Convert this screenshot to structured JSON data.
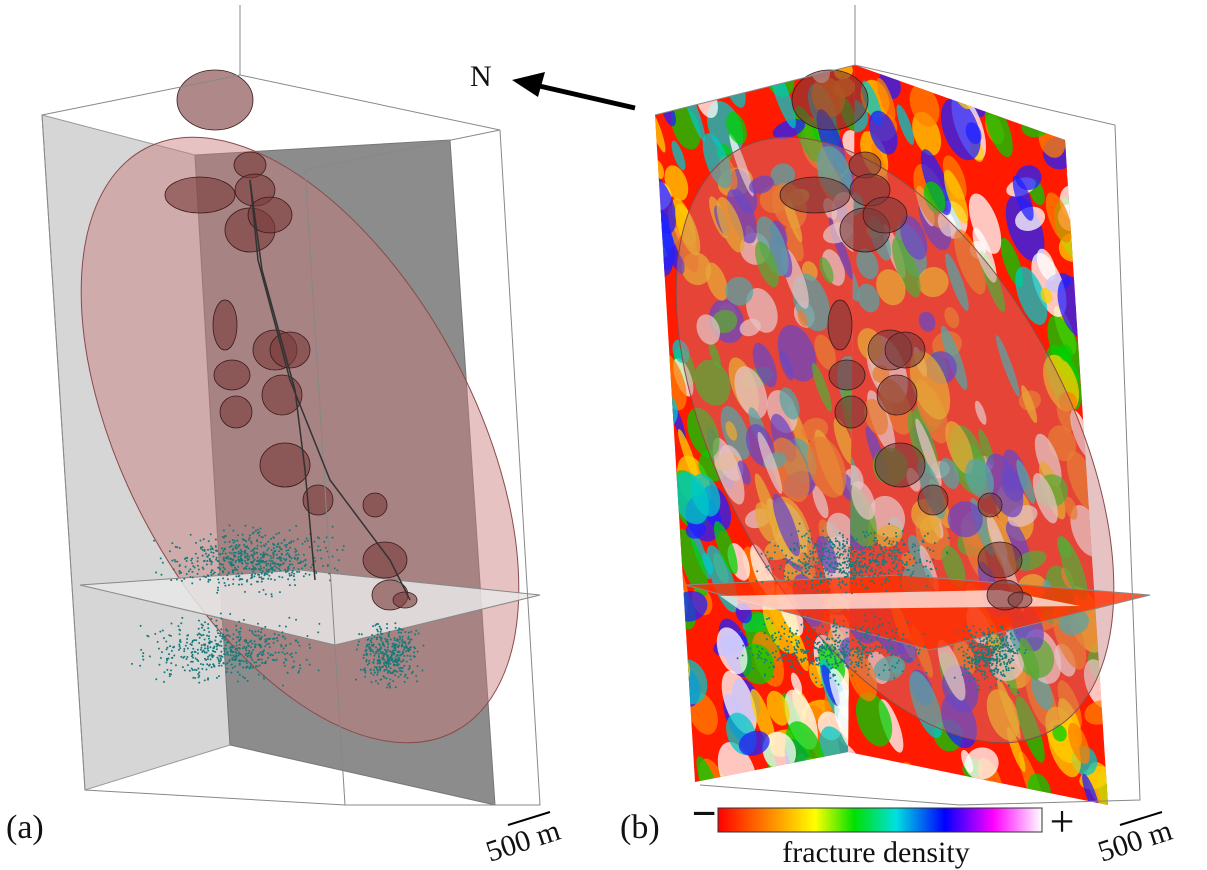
{
  "panels": [
    {
      "label": "(a)",
      "scale_bar": "500 m"
    },
    {
      "label": "(b)",
      "scale_bar": "500 m"
    }
  ],
  "north_arrow": "N",
  "colorbar": {
    "label": "fracture density",
    "min_label": "−",
    "max_label": "+"
  }
}
